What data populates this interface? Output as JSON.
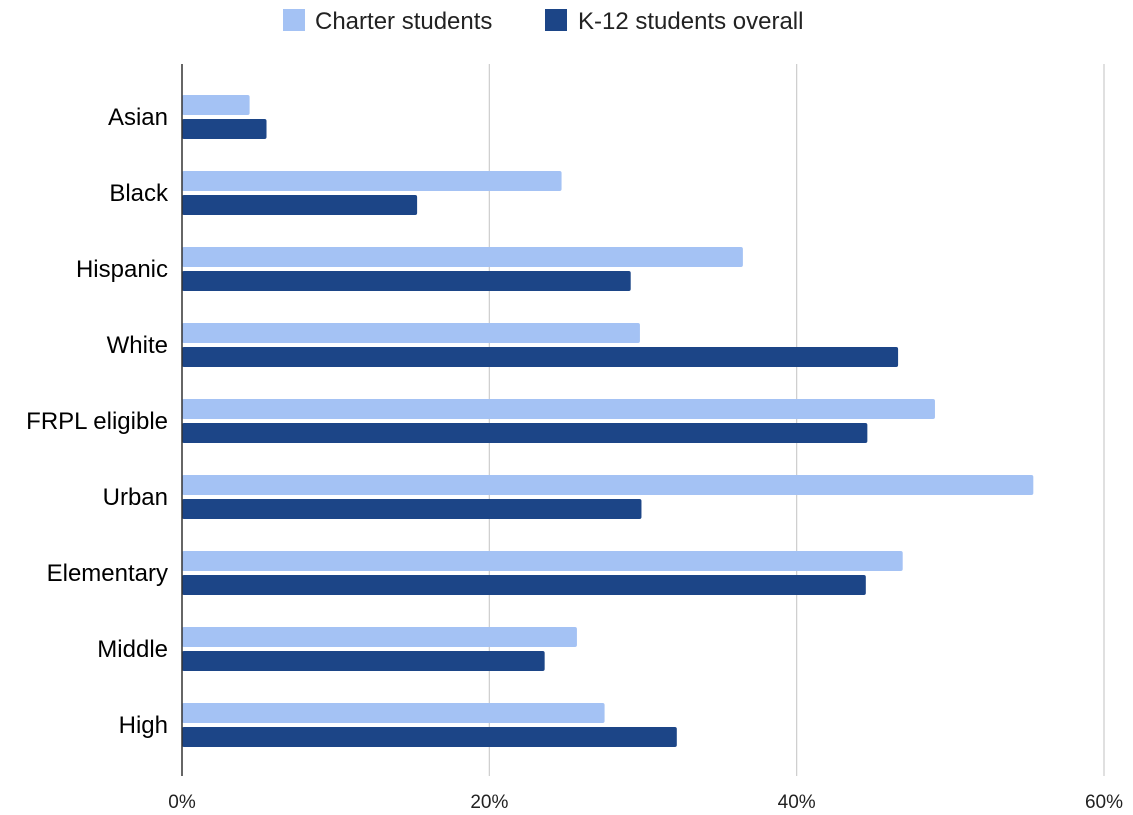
{
  "chart_data": {
    "type": "bar",
    "orientation": "horizontal",
    "categories": [
      "Asian",
      "Black",
      "Hispanic",
      "White",
      "FRPL eligible",
      "Urban",
      "Elementary",
      "Middle",
      "High"
    ],
    "series": [
      {
        "name": "Charter students",
        "color": "#a4c2f4",
        "values": [
          4.4,
          24.7,
          36.5,
          29.8,
          49.0,
          55.4,
          46.9,
          25.7,
          27.5
        ]
      },
      {
        "name": "K-12 students overall",
        "color": "#1c4587",
        "values": [
          5.5,
          15.3,
          29.2,
          46.6,
          44.6,
          29.9,
          44.5,
          23.6,
          32.2
        ]
      }
    ],
    "xlim": [
      0,
      60
    ],
    "x_ticks": [
      0,
      20,
      40,
      60
    ],
    "x_tick_labels": [
      "0%",
      "20%",
      "40%",
      "60%"
    ],
    "unit": "%",
    "grid": "vertical",
    "legend_position": "top-center",
    "title": "",
    "xlabel": "",
    "ylabel": ""
  }
}
